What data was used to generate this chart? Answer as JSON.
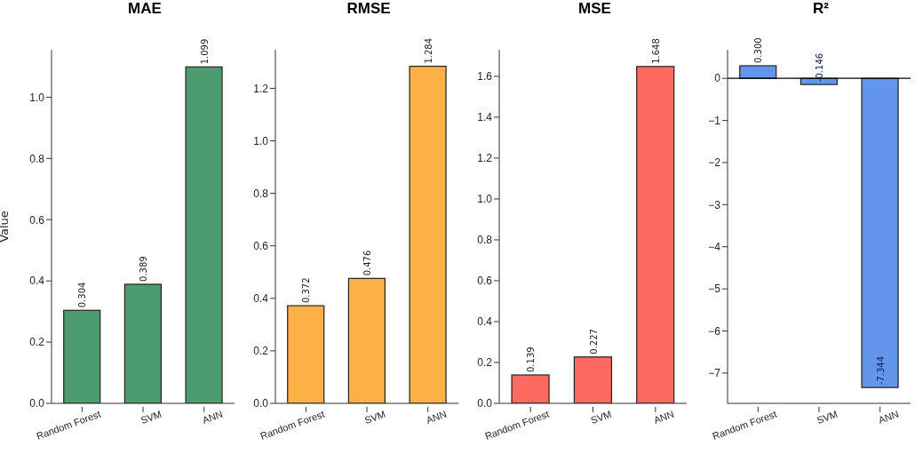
{
  "chart_data": [
    {
      "type": "bar",
      "title": "MAE",
      "ylabel": "Value",
      "categories": [
        "Random Forest",
        "SVM",
        "ANN"
      ],
      "values": [
        0.304,
        0.389,
        1.099
      ],
      "value_labels": [
        "0.304",
        "0.389",
        "1.099"
      ],
      "color": "#4c9b6f",
      "ylim": [
        0,
        1.155
      ],
      "yticks": [
        {
          "value": 0,
          "label": "0.0"
        },
        0.2,
        0.4,
        0.6,
        0.8,
        {
          "value": 1,
          "label": "1.0"
        }
      ],
      "grid": false
    },
    {
      "type": "bar",
      "title": "RMSE",
      "categories": [
        "Random Forest",
        "SVM",
        "ANN"
      ],
      "values": [
        0.372,
        0.476,
        1.284
      ],
      "value_labels": [
        "0.372",
        "0.476",
        "1.284"
      ],
      "color": "#fcb045",
      "ylim": [
        0,
        1.347
      ],
      "yticks": [
        {
          "value": 0,
          "label": "0.0"
        },
        0.2,
        0.4,
        0.6,
        0.8,
        {
          "value": 1,
          "label": "1.0"
        },
        1.2
      ],
      "grid": false
    },
    {
      "type": "bar",
      "title": "MSE",
      "categories": [
        "Random Forest",
        "SVM",
        "ANN"
      ],
      "values": [
        0.139,
        0.227,
        1.648
      ],
      "value_labels": [
        "0.139",
        "0.227",
        "1.648"
      ],
      "color": "#fc6a62",
      "ylim": [
        0,
        1.73
      ],
      "yticks": [
        {
          "value": 0,
          "label": "0.0"
        },
        0.2,
        0.4,
        0.6,
        0.8,
        {
          "value": 1,
          "label": "1.0"
        },
        1.2,
        1.4,
        1.6
      ],
      "grid": false
    },
    {
      "type": "bar",
      "title": "R²",
      "categories": [
        "Random Forest",
        "SVM",
        "ANN"
      ],
      "values": [
        0.3,
        -0.146,
        -7.344
      ],
      "value_labels": [
        "0.300",
        "-0.146",
        "-7.344"
      ],
      "color": "#6495ed",
      "ylim": [
        -7.72,
        0.68
      ],
      "yticks": [
        {
          "value": -7,
          "label": "−7"
        },
        {
          "value": -6,
          "label": "−6"
        },
        {
          "value": -5,
          "label": "−5"
        },
        {
          "value": -4,
          "label": "−4"
        },
        {
          "value": -3,
          "label": "−3"
        },
        {
          "value": -2,
          "label": "−2"
        },
        {
          "value": -1,
          "label": "−1"
        },
        0
      ],
      "ref_lines": [
        {
          "axis": "y",
          "value": 0,
          "color": "#000000"
        }
      ],
      "grid": false
    }
  ]
}
